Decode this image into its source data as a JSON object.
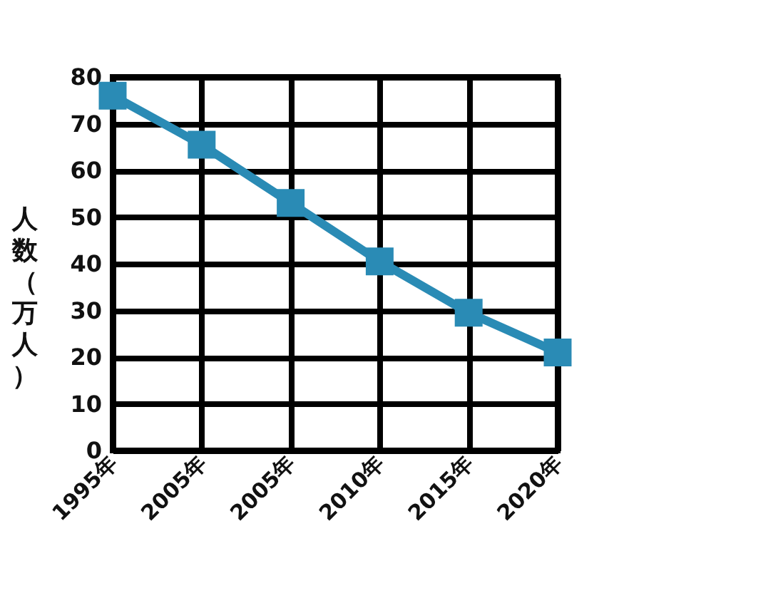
{
  "chart_data": {
    "type": "line",
    "ylabel": "人数（万人）",
    "categories": [
      "1995年",
      "2005年",
      "2005年",
      "2010年",
      "2015年",
      "2020年"
    ],
    "series": [
      {
        "color": "#2a8bb5",
        "values": [
          76,
          65.5,
          53,
          40.5,
          29.5,
          21
        ]
      }
    ],
    "ylim": [
      0,
      80
    ],
    "yticks": [
      0,
      10,
      20,
      30,
      40,
      50,
      60,
      70,
      80
    ],
    "grid": true,
    "marker": "square",
    "line_style": "solid"
  }
}
